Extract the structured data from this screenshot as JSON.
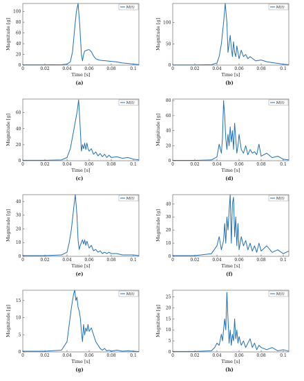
{
  "chart_data": [
    {
      "type": "line",
      "panel": "(a)",
      "xlabel": "Time [s]",
      "ylabel": "Magnitude [g]",
      "xlim": [
        0,
        0.105
      ],
      "ylim": [
        0,
        115
      ],
      "xticks": [
        0,
        0.02,
        0.04,
        0.06,
        0.08,
        0.1
      ],
      "yticks": [
        0,
        20,
        40,
        60,
        80,
        100
      ],
      "legend": "top-right",
      "series": [
        {
          "name": "M(t)",
          "color": "#1f6fb5",
          "x": [
            0,
            0.02,
            0.035,
            0.04,
            0.043,
            0.045,
            0.047,
            0.0485,
            0.05,
            0.0515,
            0.053,
            0.054,
            0.055,
            0.056,
            0.058,
            0.06,
            0.062,
            0.064,
            0.066,
            0.068,
            0.07,
            0.075,
            0.08,
            0.085,
            0.09,
            0.095,
            0.1,
            0.105
          ],
          "y": [
            0.5,
            0.5,
            0.8,
            2,
            6,
            25,
            70,
            100,
            115,
            75,
            20,
            8,
            20,
            26,
            28,
            29,
            25,
            17,
            12,
            10,
            9,
            8,
            7,
            6,
            4,
            3,
            2,
            1
          ]
        }
      ]
    },
    {
      "type": "line",
      "panel": "(b)",
      "xlabel": "Time [s]",
      "ylabel": "Magnitude [g]",
      "xlim": [
        0,
        0.105
      ],
      "ylim": [
        0,
        145
      ],
      "xticks": [
        0,
        0.02,
        0.04,
        0.06,
        0.08,
        0.1
      ],
      "yticks": [
        0,
        50,
        100
      ],
      "legend": "top-right",
      "series": [
        {
          "name": "M(t)",
          "color": "#1f6fb5",
          "x": [
            0,
            0.02,
            0.035,
            0.04,
            0.042,
            0.044,
            0.046,
            0.0475,
            0.049,
            0.05,
            0.051,
            0.052,
            0.053,
            0.054,
            0.055,
            0.056,
            0.057,
            0.058,
            0.06,
            0.062,
            0.064,
            0.066,
            0.068,
            0.07,
            0.075,
            0.08,
            0.085,
            0.09,
            0.095,
            0.1,
            0.105
          ],
          "y": [
            0.5,
            0.5,
            1,
            5,
            20,
            50,
            100,
            145,
            100,
            30,
            50,
            70,
            40,
            20,
            55,
            30,
            20,
            45,
            15,
            35,
            20,
            25,
            15,
            20,
            10,
            12,
            8,
            6,
            4,
            2,
            1
          ]
        }
      ]
    },
    {
      "type": "line",
      "panel": "(c)",
      "xlabel": "Time [s]",
      "ylabel": "Magnitude [g]",
      "xlim": [
        0,
        0.105
      ],
      "ylim": [
        0,
        77
      ],
      "xticks": [
        0,
        0.02,
        0.04,
        0.06,
        0.08,
        0.1
      ],
      "yticks": [
        0,
        20,
        40,
        60
      ],
      "legend": "top-right",
      "series": [
        {
          "name": "M(t)",
          "color": "#1f6fb5",
          "x": [
            0,
            0.02,
            0.035,
            0.04,
            0.043,
            0.045,
            0.047,
            0.049,
            0.0505,
            0.052,
            0.053,
            0.054,
            0.055,
            0.056,
            0.057,
            0.058,
            0.059,
            0.06,
            0.062,
            0.064,
            0.066,
            0.068,
            0.07,
            0.072,
            0.074,
            0.076,
            0.078,
            0.08,
            0.085,
            0.09,
            0.095,
            0.1,
            0.105
          ],
          "y": [
            0.5,
            0.5,
            1,
            4,
            15,
            30,
            45,
            60,
            76,
            40,
            12,
            20,
            15,
            22,
            14,
            22,
            15,
            12,
            15,
            8,
            11,
            6,
            9,
            5,
            8,
            4,
            7,
            4,
            5,
            3,
            4,
            2,
            1
          ]
        }
      ]
    },
    {
      "type": "line",
      "panel": "(d)",
      "xlabel": "Time [s]",
      "ylabel": "Magnitude [g]",
      "xlim": [
        0,
        0.105
      ],
      "ylim": [
        0,
        82
      ],
      "xticks": [
        0,
        0.02,
        0.04,
        0.06,
        0.08,
        0.1
      ],
      "yticks": [
        0,
        20,
        40,
        60,
        80
      ],
      "legend": "top-right",
      "series": [
        {
          "name": "M(t)",
          "color": "#1f6fb5",
          "x": [
            0,
            0.02,
            0.035,
            0.04,
            0.042,
            0.044,
            0.045,
            0.046,
            0.047,
            0.048,
            0.049,
            0.05,
            0.051,
            0.052,
            0.053,
            0.054,
            0.055,
            0.056,
            0.057,
            0.058,
            0.059,
            0.06,
            0.062,
            0.064,
            0.066,
            0.068,
            0.07,
            0.072,
            0.074,
            0.076,
            0.078,
            0.08,
            0.085,
            0.09,
            0.095,
            0.1,
            0.105
          ],
          "y": [
            0.5,
            0.5,
            1,
            5,
            22,
            10,
            30,
            80,
            60,
            30,
            15,
            35,
            20,
            45,
            25,
            40,
            15,
            50,
            30,
            10,
            20,
            35,
            15,
            10,
            20,
            8,
            15,
            10,
            12,
            8,
            22,
            6,
            10,
            4,
            6,
            2,
            1
          ]
        }
      ]
    },
    {
      "type": "line",
      "panel": "(e)",
      "xlabel": "Time [s]",
      "ylabel": "Magnitude [g]",
      "xlim": [
        0,
        0.105
      ],
      "ylim": [
        0,
        45
      ],
      "xticks": [
        0,
        0.02,
        0.04,
        0.06,
        0.08,
        0.1
      ],
      "yticks": [
        0,
        10,
        20,
        30,
        40
      ],
      "legend": "top-right",
      "series": [
        {
          "name": "M(t)",
          "color": "#1f6fb5",
          "x": [
            0,
            0.02,
            0.035,
            0.04,
            0.042,
            0.044,
            0.046,
            0.0475,
            0.049,
            0.05,
            0.051,
            0.052,
            0.053,
            0.054,
            0.055,
            0.056,
            0.057,
            0.058,
            0.06,
            0.062,
            0.064,
            0.066,
            0.068,
            0.07,
            0.072,
            0.074,
            0.076,
            0.078,
            0.08,
            0.085,
            0.09,
            0.095,
            0.1,
            0.105
          ],
          "y": [
            0.5,
            0.5,
            1,
            3,
            10,
            20,
            35,
            45,
            30,
            12,
            5,
            8,
            10,
            12,
            9,
            12,
            8,
            11,
            6,
            8,
            4,
            5,
            3,
            4,
            2,
            3,
            2,
            3,
            2,
            2,
            1,
            1,
            1,
            0.5
          ]
        }
      ]
    },
    {
      "type": "line",
      "panel": "(f)",
      "xlabel": "Time [s]",
      "ylabel": "Magnitude [g]",
      "xlim": [
        0,
        0.105
      ],
      "ylim": [
        0,
        47
      ],
      "xticks": [
        0,
        0.02,
        0.04,
        0.06,
        0.08,
        0.1
      ],
      "yticks": [
        0,
        10,
        20,
        30,
        40
      ],
      "legend": "top-right",
      "series": [
        {
          "name": "M(t)",
          "color": "#1f6fb5",
          "x": [
            0,
            0.02,
            0.035,
            0.04,
            0.042,
            0.044,
            0.046,
            0.047,
            0.048,
            0.049,
            0.05,
            0.051,
            0.052,
            0.053,
            0.054,
            0.055,
            0.056,
            0.057,
            0.058,
            0.059,
            0.06,
            0.062,
            0.064,
            0.066,
            0.068,
            0.07,
            0.072,
            0.074,
            0.076,
            0.078,
            0.08,
            0.085,
            0.09,
            0.095,
            0.1,
            0.105
          ],
          "y": [
            0.5,
            0.5,
            2,
            8,
            15,
            5,
            12,
            25,
            10,
            30,
            20,
            35,
            47,
            10,
            40,
            45,
            15,
            30,
            8,
            25,
            5,
            15,
            8,
            12,
            5,
            10,
            4,
            8,
            3,
            10,
            4,
            8,
            3,
            5,
            2,
            4
          ]
        }
      ]
    },
    {
      "type": "line",
      "panel": "(g)",
      "xlabel": "Time [s]",
      "ylabel": "Magnitude [g]",
      "xlim": [
        0,
        0.105
      ],
      "ylim": [
        0,
        18
      ],
      "xticks": [
        0,
        0.02,
        0.04,
        0.06,
        0.08,
        0.1
      ],
      "yticks": [
        0,
        5,
        10,
        15
      ],
      "legend": "top-right",
      "series": [
        {
          "name": "M(t)",
          "color": "#1f6fb5",
          "x": [
            0,
            0.02,
            0.035,
            0.04,
            0.042,
            0.044,
            0.046,
            0.047,
            0.048,
            0.049,
            0.05,
            0.051,
            0.052,
            0.053,
            0.054,
            0.055,
            0.056,
            0.057,
            0.058,
            0.059,
            0.06,
            0.062,
            0.064,
            0.066,
            0.068,
            0.07,
            0.072,
            0.074,
            0.076,
            0.078,
            0.08,
            0.085,
            0.09,
            0.095,
            0.1,
            0.105
          ],
          "y": [
            0.2,
            0.2,
            0.5,
            3,
            8,
            13,
            17,
            18,
            15,
            16,
            13,
            12,
            10,
            6,
            3,
            8,
            5,
            7,
            6,
            8,
            6,
            7,
            5,
            3,
            2,
            1,
            0.5,
            1,
            0.3,
            0.5,
            0.2,
            0.5,
            0.2,
            0.3,
            0.2,
            0.1
          ]
        }
      ]
    },
    {
      "type": "line",
      "panel": "(h)",
      "xlabel": "Time [s]",
      "ylabel": "Magnitude [g]",
      "xlim": [
        0,
        0.105
      ],
      "ylim": [
        0,
        28
      ],
      "xticks": [
        0,
        0.02,
        0.04,
        0.06,
        0.08,
        0.1
      ],
      "yticks": [
        0,
        5,
        10,
        15,
        20,
        25
      ],
      "legend": "top-right",
      "series": [
        {
          "name": "M(t)",
          "color": "#1f6fb5",
          "x": [
            0,
            0.02,
            0.035,
            0.038,
            0.04,
            0.042,
            0.044,
            0.045,
            0.046,
            0.047,
            0.048,
            0.049,
            0.05,
            0.051,
            0.052,
            0.053,
            0.054,
            0.055,
            0.056,
            0.057,
            0.058,
            0.059,
            0.06,
            0.062,
            0.064,
            0.066,
            0.068,
            0.07,
            0.072,
            0.074,
            0.076,
            0.078,
            0.08,
            0.085,
            0.09,
            0.095,
            0.1,
            0.105
          ],
          "y": [
            0.2,
            0.2,
            0.5,
            2,
            4,
            3,
            8,
            5,
            10,
            15,
            10,
            27,
            15,
            4,
            10,
            3,
            8,
            5,
            15,
            6,
            10,
            4,
            7,
            3,
            5,
            2,
            4,
            6,
            2,
            4,
            1,
            3,
            2,
            1,
            2,
            0.5,
            1,
            0.3
          ]
        }
      ]
    }
  ]
}
